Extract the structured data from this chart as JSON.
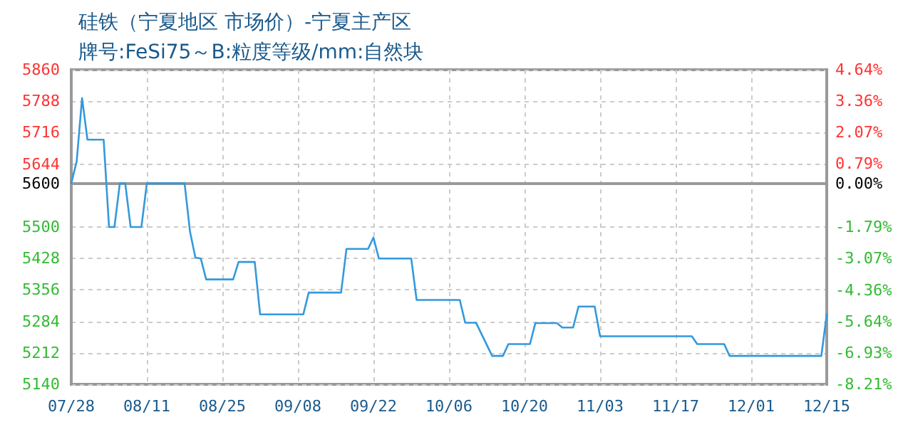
{
  "chart_data": {
    "type": "line",
    "title": "硅铁（宁夏地区 市场价）-宁夏主产区",
    "subtitle": "牌号:FeSi75～B:粒度等级/mm:自然块",
    "x": [
      "--07-28",
      "--07-29",
      "--07-30",
      "--07-31",
      "--08-03",
      "--08-04",
      "--08-05",
      "--08-06",
      "--08-07",
      "--08-08",
      "--08-10",
      "--08-11",
      "--08-18",
      "--08-19",
      "--08-20",
      "--08-21",
      "--08-22",
      "--08-27",
      "--08-28",
      "--08-31",
      "--09-01",
      "--09-09",
      "--09-10",
      "--09-16",
      "--09-17",
      "--09-21",
      "--09-22",
      "--09-23",
      "--09-29",
      "--09-30",
      "--10-08",
      "--10-09",
      "--10-11",
      "--10-14",
      "--10-16",
      "--10-17",
      "--10-21",
      "--10-22",
      "--10-26",
      "--10-27",
      "--10-29",
      "--10-30",
      "--11-02",
      "--11-03",
      "--11-20",
      "--11-21",
      "--11-26",
      "--11-27",
      "--12-14",
      "--12-15"
    ],
    "series": [
      {
        "color": "#3399dd",
        "values": [
          5600,
          5650,
          5795,
          5700,
          5700,
          5500,
          5500,
          5600,
          5600,
          5500,
          5500,
          5600,
          5600,
          5490,
          5430,
          5428,
          5380,
          5380,
          5420,
          5420,
          5300,
          5300,
          5350,
          5350,
          5450,
          5450,
          5476,
          5428,
          5428,
          5333,
          5333,
          5281,
          5281,
          5205,
          5205,
          5232,
          5232,
          5280,
          5280,
          5270,
          5270,
          5318,
          5318,
          5250,
          5250,
          5232,
          5232,
          5205,
          5205,
          5300
        ]
      }
    ],
    "xlim": [
      "--07-28",
      "--12-15"
    ],
    "xticks": [
      {
        "value": "--07-28",
        "label": "07/28"
      },
      {
        "value": "--08-11",
        "label": "08/11"
      },
      {
        "value": "--08-25",
        "label": "08/25"
      },
      {
        "value": "--09-08",
        "label": "09/08"
      },
      {
        "value": "--09-22",
        "label": "09/22"
      },
      {
        "value": "--10-06",
        "label": "10/06"
      },
      {
        "value": "--10-20",
        "label": "10/20"
      },
      {
        "value": "--11-03",
        "label": "11/03"
      },
      {
        "value": "--11-17",
        "label": "11/17"
      },
      {
        "value": "--12-01",
        "label": "12/01"
      },
      {
        "value": "--12-15",
        "label": "12/15"
      }
    ],
    "ylim": [
      5140,
      5860
    ],
    "yticks": [
      5140,
      5212,
      5284,
      5356,
      5428,
      5500,
      5600,
      5644,
      5716,
      5788,
      5860
    ],
    "y2lim": [
      -8.21,
      4.64
    ],
    "y2ticks": [
      {
        "value": -8.21,
        "label": "-8.21%"
      },
      {
        "value": -6.93,
        "label": "-6.93%"
      },
      {
        "value": -5.64,
        "label": "-5.64%"
      },
      {
        "value": -4.36,
        "label": "-4.36%"
      },
      {
        "value": -3.07,
        "label": "-3.07%"
      },
      {
        "value": -1.79,
        "label": "-1.79%"
      },
      {
        "value": 0,
        "label": "0.00%"
      },
      {
        "value": 0.79,
        "label": "0.79%"
      },
      {
        "value": 2.07,
        "label": "2.07%"
      },
      {
        "value": 3.36,
        "label": "3.36%"
      },
      {
        "value": 4.64,
        "label": "4.64%"
      }
    ],
    "ref_lines": [
      {
        "axis": "y",
        "value": 5600,
        "color": "#999999"
      }
    ],
    "grid": true,
    "marker": "none",
    "line_style": "solid"
  }
}
